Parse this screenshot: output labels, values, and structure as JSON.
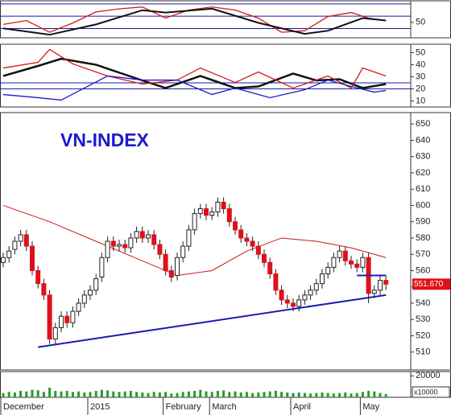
{
  "chart_data": [
    {
      "type": "line",
      "ylim": [
        25,
        85
      ],
      "yticks": [
        50
      ],
      "hlines": [
        80,
        60,
        40
      ],
      "hline_color": "#1a1aa0",
      "series": [
        {
          "color": "#d21a1a",
          "x": [
            0,
            4,
            8,
            12,
            16,
            20,
            24,
            28,
            32,
            36,
            40,
            44,
            48,
            52,
            56,
            60,
            63,
            66
          ],
          "values": [
            46.7,
            53,
            34,
            49,
            67,
            72,
            75,
            57,
            70,
            75,
            70,
            57,
            34,
            36.5,
            59.5,
            66,
            57,
            53
          ]
        },
        {
          "color": "#111111",
          "x": [
            0,
            8,
            16,
            24,
            28,
            36,
            44,
            52,
            56,
            62,
            66
          ],
          "values": [
            40.3,
            30,
            46.7,
            69.7,
            65.9,
            72.2,
            49.3,
            31.4,
            36.5,
            56.9,
            53.1
          ]
        }
      ]
    },
    {
      "type": "line",
      "ylim": [
        5,
        57
      ],
      "yticks": [
        10,
        20,
        30,
        40,
        50
      ],
      "hlines": [
        20,
        25
      ],
      "hline_color": "#1a1aa0",
      "series": [
        {
          "color": "#111111",
          "x": [
            0,
            6,
            10,
            16,
            24,
            28,
            34,
            40,
            44,
            50,
            54,
            58,
            62,
            66
          ],
          "values": [
            30.7,
            39,
            45,
            40,
            27,
            20.7,
            30.7,
            20.7,
            22,
            32.7,
            27,
            28,
            20.7,
            24
          ]
        },
        {
          "color": "#d21a1a",
          "x": [
            0,
            6,
            8,
            12,
            18,
            24,
            30,
            34,
            40,
            44,
            50,
            56,
            60,
            62,
            66
          ],
          "values": [
            37.3,
            42,
            52.7,
            40.7,
            30.7,
            24,
            27.3,
            37.3,
            25.3,
            34,
            20.7,
            30.7,
            20.7,
            37.3,
            30.7
          ]
        },
        {
          "color": "#1a1ad0",
          "x": [
            0,
            6,
            10,
            14,
            18,
            24,
            30,
            36,
            40,
            46,
            52,
            56,
            60,
            64,
            66
          ],
          "values": [
            15.3,
            12.7,
            10.7,
            20.7,
            30.7,
            27.3,
            27.3,
            15.3,
            20.7,
            12.7,
            19.3,
            27.3,
            22,
            17.3,
            18.7
          ]
        }
      ]
    },
    {
      "type": "candlestick",
      "title": "VN-INDEX",
      "ylim": [
        499,
        657
      ],
      "yticks": [
        510,
        520,
        530,
        540,
        550,
        560,
        570,
        580,
        590,
        600,
        610,
        620,
        630,
        640,
        650
      ],
      "up_color": "#ffffff",
      "down_color": "#e0101a",
      "open": [
        565,
        568,
        573,
        578,
        582,
        575,
        560,
        552,
        545,
        518,
        525,
        532,
        528,
        535,
        540,
        545,
        548,
        556,
        568,
        578,
        575,
        576,
        574,
        580,
        584,
        580,
        582,
        576,
        570,
        560,
        557,
        568,
        575,
        585,
        595,
        598,
        594,
        596,
        602,
        598,
        590,
        585,
        580,
        578,
        575,
        570,
        565,
        558,
        548,
        542,
        540,
        538,
        542,
        545,
        548,
        552,
        558,
        562,
        568,
        572,
        566,
        564,
        562,
        568,
        546,
        548,
        554
      ],
      "high": [
        571,
        575,
        581,
        585,
        585,
        578,
        563,
        555,
        548,
        528,
        535,
        535,
        538,
        543,
        548,
        551,
        558,
        571,
        581,
        581,
        579,
        579,
        583,
        587,
        587,
        585,
        585,
        579,
        573,
        563,
        571,
        578,
        588,
        598,
        601,
        601,
        599,
        605,
        605,
        601,
        593,
        588,
        583,
        581,
        578,
        573,
        568,
        561,
        551,
        545,
        543,
        545,
        548,
        551,
        555,
        561,
        565,
        571,
        575,
        575,
        569,
        567,
        571,
        571,
        551,
        557,
        557
      ],
      "low": [
        562,
        565,
        570,
        575,
        572,
        557,
        549,
        542,
        515,
        515,
        522,
        525,
        525,
        532,
        537,
        542,
        545,
        553,
        565,
        572,
        572,
        571,
        571,
        577,
        577,
        577,
        573,
        567,
        557,
        553,
        554,
        565,
        572,
        582,
        592,
        591,
        591,
        593,
        595,
        587,
        582,
        577,
        575,
        572,
        567,
        562,
        555,
        545,
        539,
        537,
        535,
        535,
        539,
        542,
        545,
        549,
        555,
        559,
        565,
        563,
        561,
        559,
        559,
        540,
        543,
        545,
        548
      ],
      "close": [
        568,
        572,
        578,
        582,
        575,
        560,
        552,
        545,
        518,
        525,
        532,
        528,
        535,
        540,
        545,
        548,
        555,
        568,
        578,
        575,
        576,
        574,
        580,
        584,
        580,
        582,
        576,
        570,
        560,
        556,
        568,
        575,
        585,
        595,
        598,
        594,
        596,
        602,
        598,
        590,
        585,
        580,
        578,
        575,
        570,
        565,
        558,
        548,
        542,
        540,
        538,
        542,
        545,
        548,
        552,
        558,
        562,
        568,
        572,
        566,
        564,
        562,
        568,
        546,
        548,
        554,
        551.67
      ],
      "last_price_label": "551.670",
      "ma": {
        "color": "#c81818",
        "x": [
          0,
          8,
          16,
          24,
          30,
          36,
          42,
          48,
          54,
          60,
          66
        ],
        "values": [
          600,
          590,
          578,
          566,
          557,
          560,
          572,
          580,
          578,
          574,
          568
        ]
      },
      "lines": [
        {
          "color": "#1a1ab4",
          "x": [
            6,
            66
          ],
          "values": [
            513,
            545
          ]
        },
        {
          "color": "#1a1ab4",
          "x": [
            61,
            66
          ],
          "values": [
            557,
            557
          ]
        }
      ]
    },
    {
      "type": "bar",
      "ylim": [
        0,
        24000
      ],
      "yticks": [
        20000
      ],
      "unit_label": "x10000",
      "color": "#2a9a2a",
      "categories": [
        "December",
        null,
        null,
        null,
        null,
        null,
        null,
        null,
        null,
        null,
        null,
        null,
        null,
        null,
        null,
        "2015",
        null,
        null,
        null,
        null,
        null,
        null,
        null,
        null,
        null,
        null,
        null,
        null,
        "February",
        null,
        null,
        null,
        null,
        null,
        null,
        null,
        "March",
        null,
        null,
        null,
        null,
        null,
        null,
        null,
        null,
        null,
        null,
        null,
        null,
        null,
        "April",
        null,
        null,
        null,
        null,
        null,
        null,
        null,
        null,
        null,
        null,
        null,
        "May",
        null,
        null,
        null,
        null
      ],
      "values": [
        4000,
        5000,
        4500,
        6000,
        5500,
        7000,
        6500,
        5000,
        9000,
        6000,
        5500,
        6000,
        5000,
        5500,
        4500,
        5000,
        6000,
        7000,
        6500,
        5500,
        5000,
        5500,
        6000,
        5000,
        4500,
        4000,
        5000,
        4500,
        5000,
        3500,
        4000,
        5000,
        5500,
        6000,
        7000,
        5500,
        5000,
        6000,
        6500,
        5000,
        5500,
        4500,
        5000,
        4000,
        4500,
        5000,
        5500,
        6000,
        5000,
        4500,
        4000,
        4500,
        4000,
        3500,
        4000,
        4500,
        4000,
        3500,
        4000,
        4500,
        3500,
        4000,
        5000,
        6000,
        5500,
        4000,
        3000
      ]
    }
  ]
}
